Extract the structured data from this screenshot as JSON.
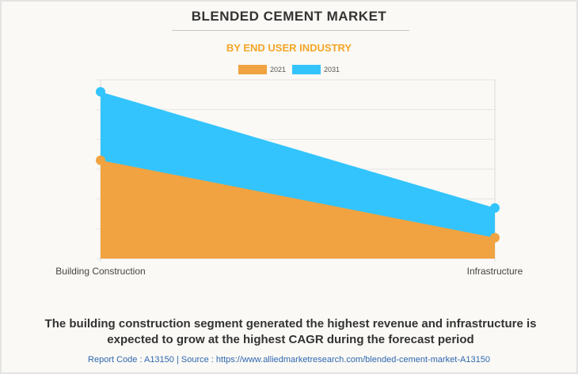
{
  "header": {
    "title": "BLENDED CEMENT MARKET",
    "subtitle": "BY END USER INDUSTRY"
  },
  "chart_data": {
    "type": "area",
    "title": "BLENDED CEMENT MARKET",
    "subtitle": "BY END USER INDUSTRY",
    "categories": [
      "Building Construction",
      "Infrastructure"
    ],
    "series": [
      {
        "name": "2021",
        "color": "#f0a340",
        "values": [
          3.3,
          0.7
        ]
      },
      {
        "name": "2031",
        "color": "#33c4fd",
        "values": [
          5.6,
          1.7
        ]
      }
    ],
    "xlabel": "",
    "ylabel": "",
    "ylim": [
      0,
      6
    ],
    "y_ticks_count": 7,
    "y_tick_labels_visible": false,
    "grid": true,
    "legend_position": "top-center"
  },
  "footer": {
    "caption": "The building construction segment generated the highest revenue and infrastructure is expected to grow at the highest CAGR during the forecast period",
    "source": "Report Code : A13150  |  Source : https://www.alliedmarketresearch.com/blended-cement-market-A13150"
  }
}
